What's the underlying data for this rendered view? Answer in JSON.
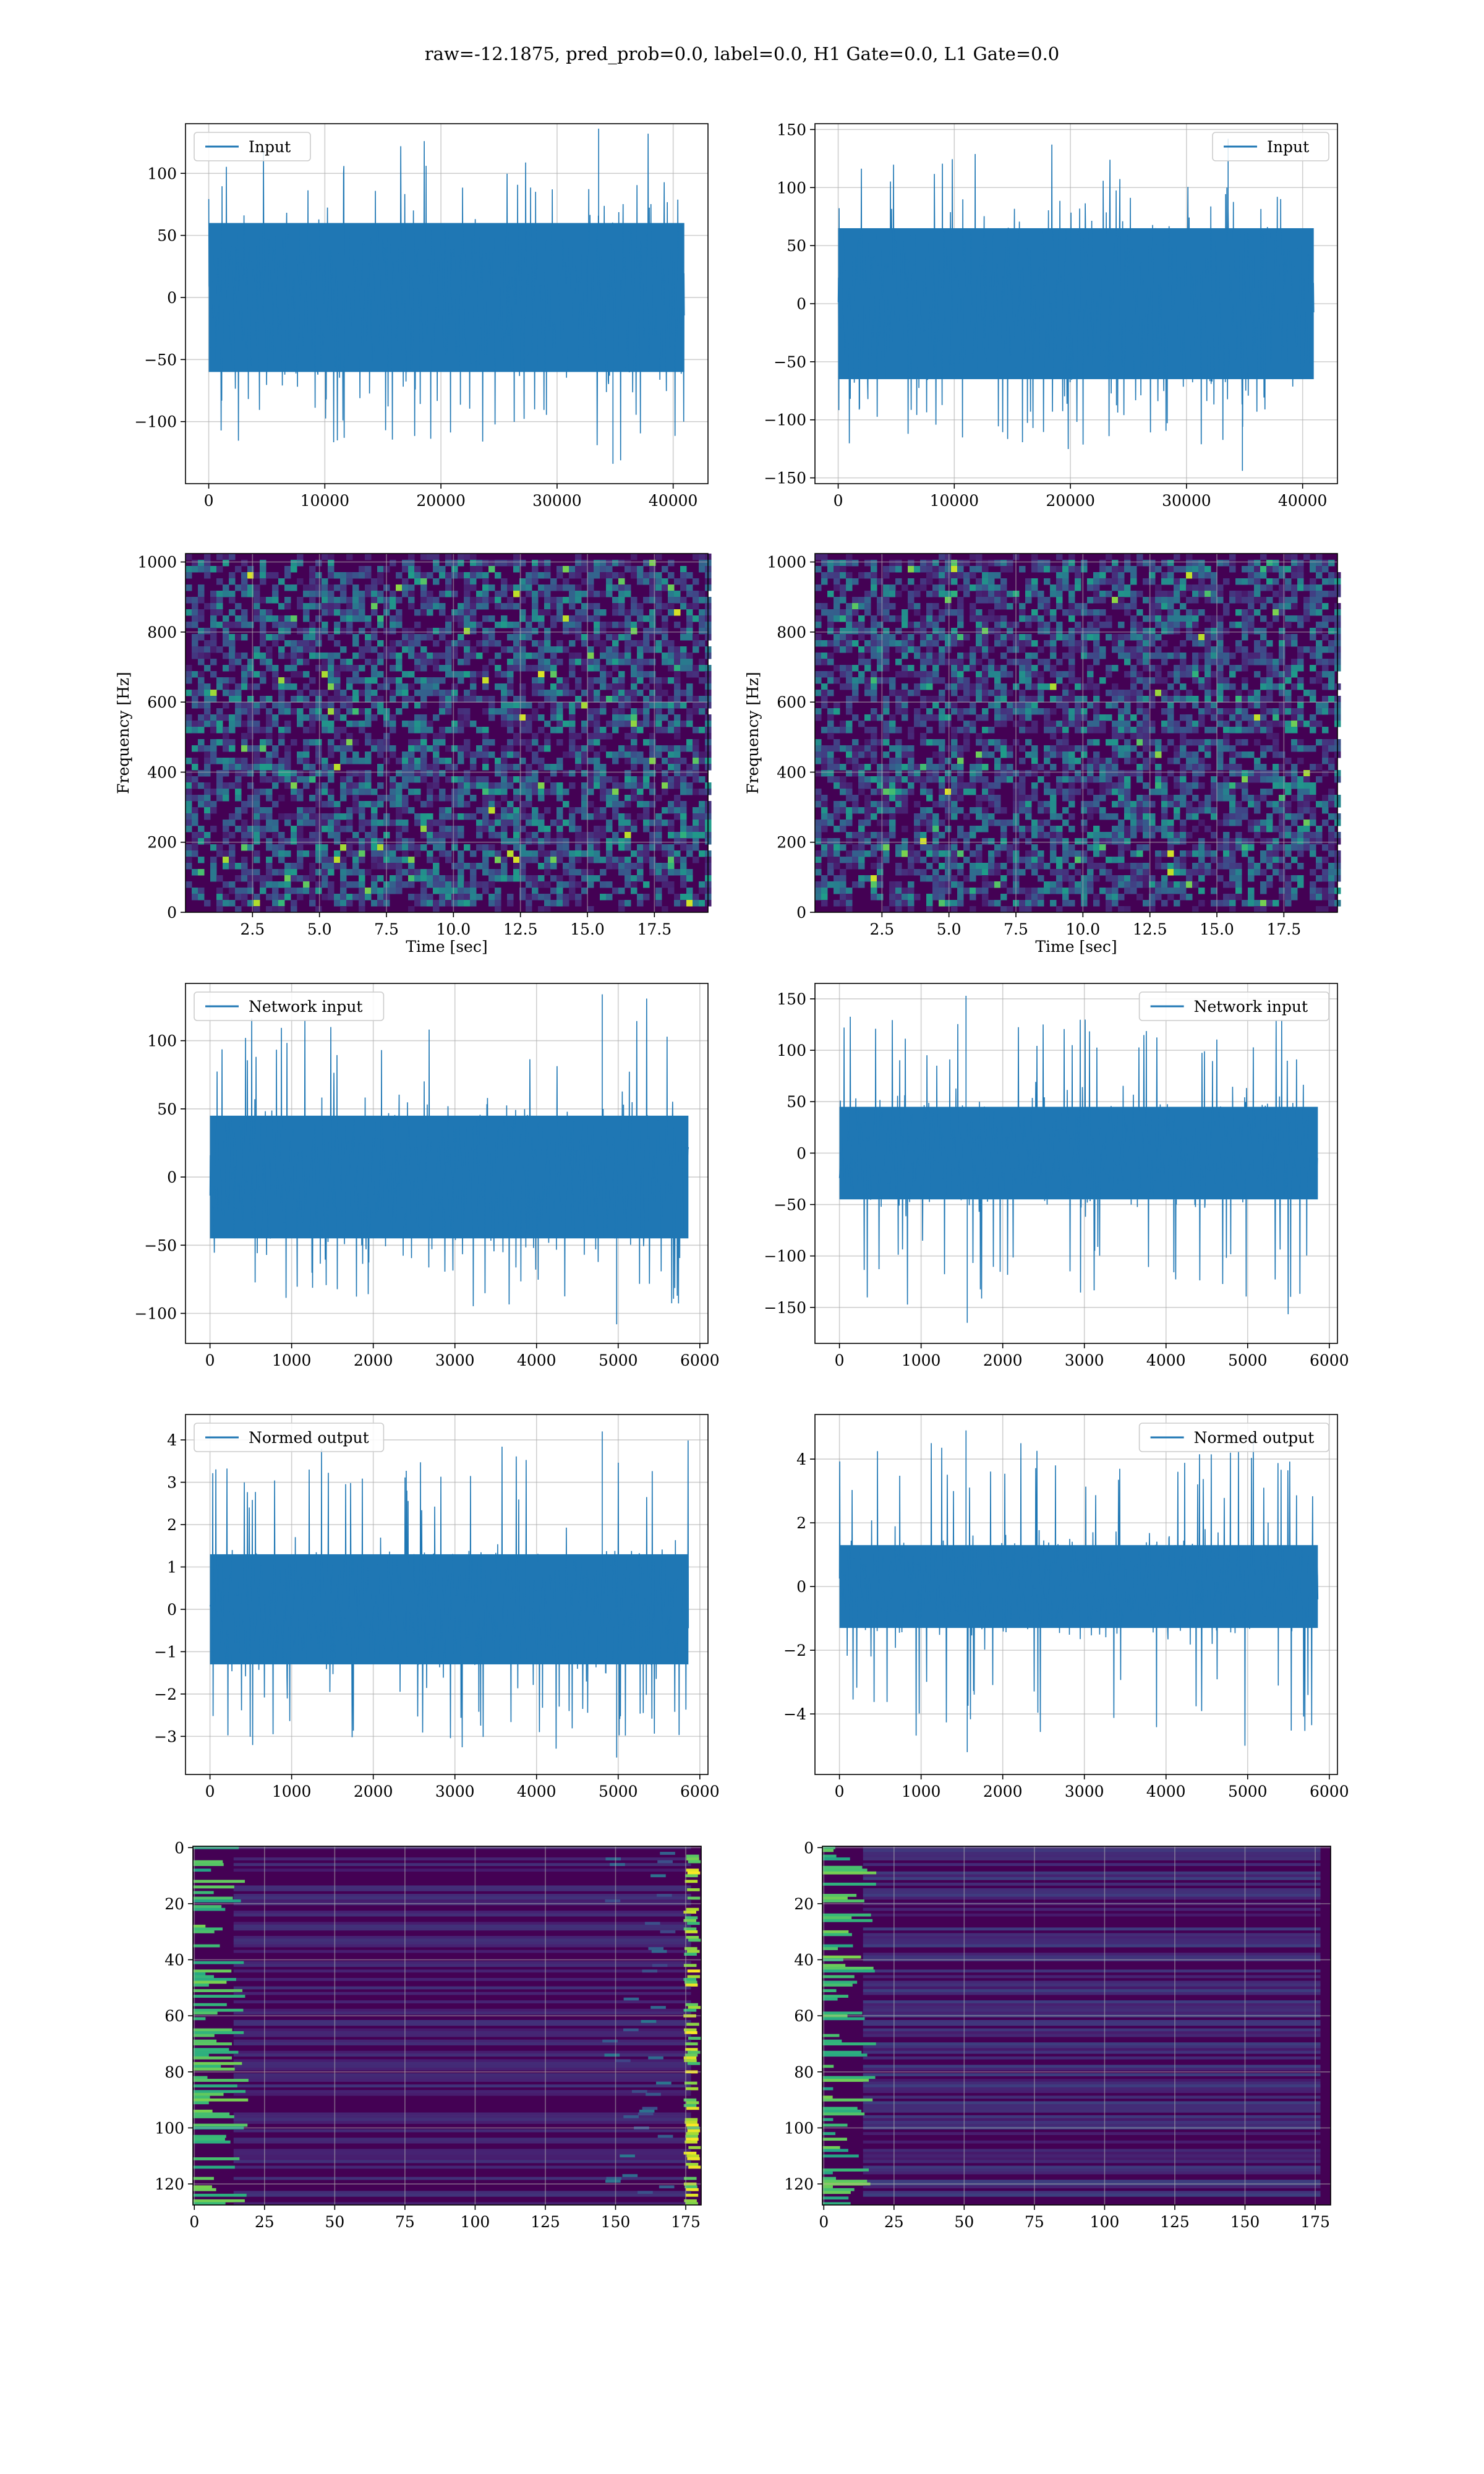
{
  "suptitle": "raw=-12.1875, pred_prob=0.0, label=0.0, H1 Gate=0.0, L1 Gate=0.0",
  "colors": {
    "line": "#1f77b4",
    "viridis_dark": "#440154",
    "grid": "#b0b0b0"
  },
  "chart_data": [
    {
      "id": "p00",
      "type": "line",
      "legend": "Input",
      "legend_loc": "upper-left",
      "xlim": [
        -2000,
        43000
      ],
      "ylim": [
        -150,
        140
      ],
      "xticks": [
        0,
        10000,
        20000,
        30000,
        40000
      ],
      "yticks": [
        -100,
        -50,
        0,
        50,
        100
      ],
      "series": [
        {
          "x_range": [
            0,
            40960
          ],
          "envelope": [
            -134,
            136
          ],
          "core": [
            -60,
            60
          ]
        }
      ],
      "xlabel": "",
      "ylabel": "",
      "grid": true
    },
    {
      "id": "p01",
      "type": "line",
      "legend": "Input",
      "legend_loc": "upper-right",
      "xlim": [
        -2000,
        43000
      ],
      "ylim": [
        -155,
        155
      ],
      "xticks": [
        0,
        10000,
        20000,
        30000,
        40000
      ],
      "yticks": [
        -150,
        -100,
        -50,
        0,
        50,
        100,
        150
      ],
      "series": [
        {
          "x_range": [
            0,
            40960
          ],
          "envelope": [
            -144,
            142
          ],
          "core": [
            -65,
            65
          ]
        }
      ],
      "xlabel": "",
      "ylabel": "",
      "grid": true
    },
    {
      "id": "p10",
      "type": "heatmap",
      "xlim": [
        0,
        19.5
      ],
      "ylim": [
        0,
        1024
      ],
      "xticks": [
        2.5,
        5.0,
        7.5,
        10.0,
        12.5,
        15.0,
        17.5
      ],
      "xtick_labels": [
        "2.5",
        "5.0",
        "7.5",
        "10.0",
        "12.5",
        "15.0",
        "17.5"
      ],
      "yticks": [
        0,
        200,
        400,
        600,
        800,
        1000
      ],
      "xlabel": "Time [sec]",
      "ylabel": "Frequency [Hz]",
      "grid": true,
      "dark_bands": [
        [
          490,
          515
        ],
        [
          1005,
          1024
        ],
        [
          0,
          12
        ]
      ]
    },
    {
      "id": "p11",
      "type": "heatmap",
      "xlim": [
        0,
        19.5
      ],
      "ylim": [
        0,
        1024
      ],
      "xticks": [
        2.5,
        5.0,
        7.5,
        10.0,
        12.5,
        15.0,
        17.5
      ],
      "xtick_labels": [
        "2.5",
        "5.0",
        "7.5",
        "10.0",
        "12.5",
        "15.0",
        "17.5"
      ],
      "yticks": [
        0,
        200,
        400,
        600,
        800,
        1000
      ],
      "xlabel": "Time [sec]",
      "ylabel": "Frequency [Hz]",
      "grid": true,
      "dark_bands": [
        [
          490,
          515
        ],
        [
          1005,
          1024
        ],
        [
          0,
          12
        ]
      ]
    },
    {
      "id": "p20",
      "type": "line",
      "legend": "Network input",
      "legend_loc": "upper-left",
      "xlim": [
        -300,
        6100
      ],
      "ylim": [
        -122,
        142
      ],
      "xticks": [
        0,
        1000,
        2000,
        3000,
        4000,
        5000,
        6000
      ],
      "yticks": [
        -100,
        -50,
        0,
        50,
        100
      ],
      "series": [
        {
          "x_range": [
            0,
            5860
          ],
          "envelope": [
            -108,
            134
          ],
          "core": [
            -45,
            45
          ]
        }
      ],
      "xlabel": "",
      "ylabel": "",
      "grid": true
    },
    {
      "id": "p21",
      "type": "line",
      "legend": "Network input",
      "legend_loc": "upper-right",
      "xlim": [
        -300,
        6100
      ],
      "ylim": [
        -185,
        165
      ],
      "xticks": [
        0,
        1000,
        2000,
        3000,
        4000,
        5000,
        6000
      ],
      "yticks": [
        -150,
        -100,
        -50,
        0,
        50,
        100,
        150
      ],
      "series": [
        {
          "x_range": [
            0,
            5860
          ],
          "envelope": [
            -165,
            153
          ],
          "core": [
            -45,
            45
          ],
          "spike_x": 1550
        }
      ],
      "xlabel": "",
      "ylabel": "",
      "grid": true
    },
    {
      "id": "p30",
      "type": "line",
      "legend": "Normed output",
      "legend_loc": "upper-left",
      "xlim": [
        -300,
        6100
      ],
      "ylim": [
        -3.9,
        4.6
      ],
      "xticks": [
        0,
        1000,
        2000,
        3000,
        4000,
        5000,
        6000
      ],
      "yticks": [
        -3,
        -2,
        -1,
        0,
        1,
        2,
        3,
        4
      ],
      "series": [
        {
          "x_range": [
            0,
            5860
          ],
          "envelope": [
            -3.5,
            4.2
          ],
          "core": [
            -1.3,
            1.3
          ]
        }
      ],
      "xlabel": "",
      "ylabel": "",
      "grid": true
    },
    {
      "id": "p31",
      "type": "line",
      "legend": "Normed output",
      "legend_loc": "upper-right",
      "xlim": [
        -300,
        6100
      ],
      "ylim": [
        -5.9,
        5.4
      ],
      "xticks": [
        0,
        1000,
        2000,
        3000,
        4000,
        5000,
        6000
      ],
      "yticks": [
        -4,
        -2,
        0,
        2,
        4
      ],
      "series": [
        {
          "x_range": [
            0,
            5860
          ],
          "envelope": [
            -5.2,
            4.9
          ],
          "core": [
            -1.3,
            1.3
          ],
          "spike_x": 1550
        }
      ],
      "xlabel": "",
      "ylabel": "",
      "grid": true
    },
    {
      "id": "p40",
      "type": "heatmap",
      "xlim": [
        -0.5,
        180.5
      ],
      "ylim": [
        127.5,
        -0.5
      ],
      "xticks": [
        0,
        25,
        50,
        75,
        100,
        125,
        150,
        175
      ],
      "yticks": [
        0,
        20,
        40,
        60,
        80,
        100,
        120
      ],
      "xlabel": "",
      "ylabel": "",
      "grid": true,
      "n_rows": 128,
      "n_cols": 181,
      "pattern": "right-edge"
    },
    {
      "id": "p41",
      "type": "heatmap",
      "xlim": [
        -0.5,
        180.5
      ],
      "ylim": [
        127.5,
        -0.5
      ],
      "xticks": [
        0,
        25,
        50,
        75,
        100,
        125,
        150,
        175
      ],
      "yticks": [
        0,
        20,
        40,
        60,
        80,
        100,
        120
      ],
      "xlabel": "",
      "ylabel": "",
      "grid": true,
      "n_rows": 128,
      "n_cols": 181,
      "pattern": "left-edge"
    }
  ]
}
